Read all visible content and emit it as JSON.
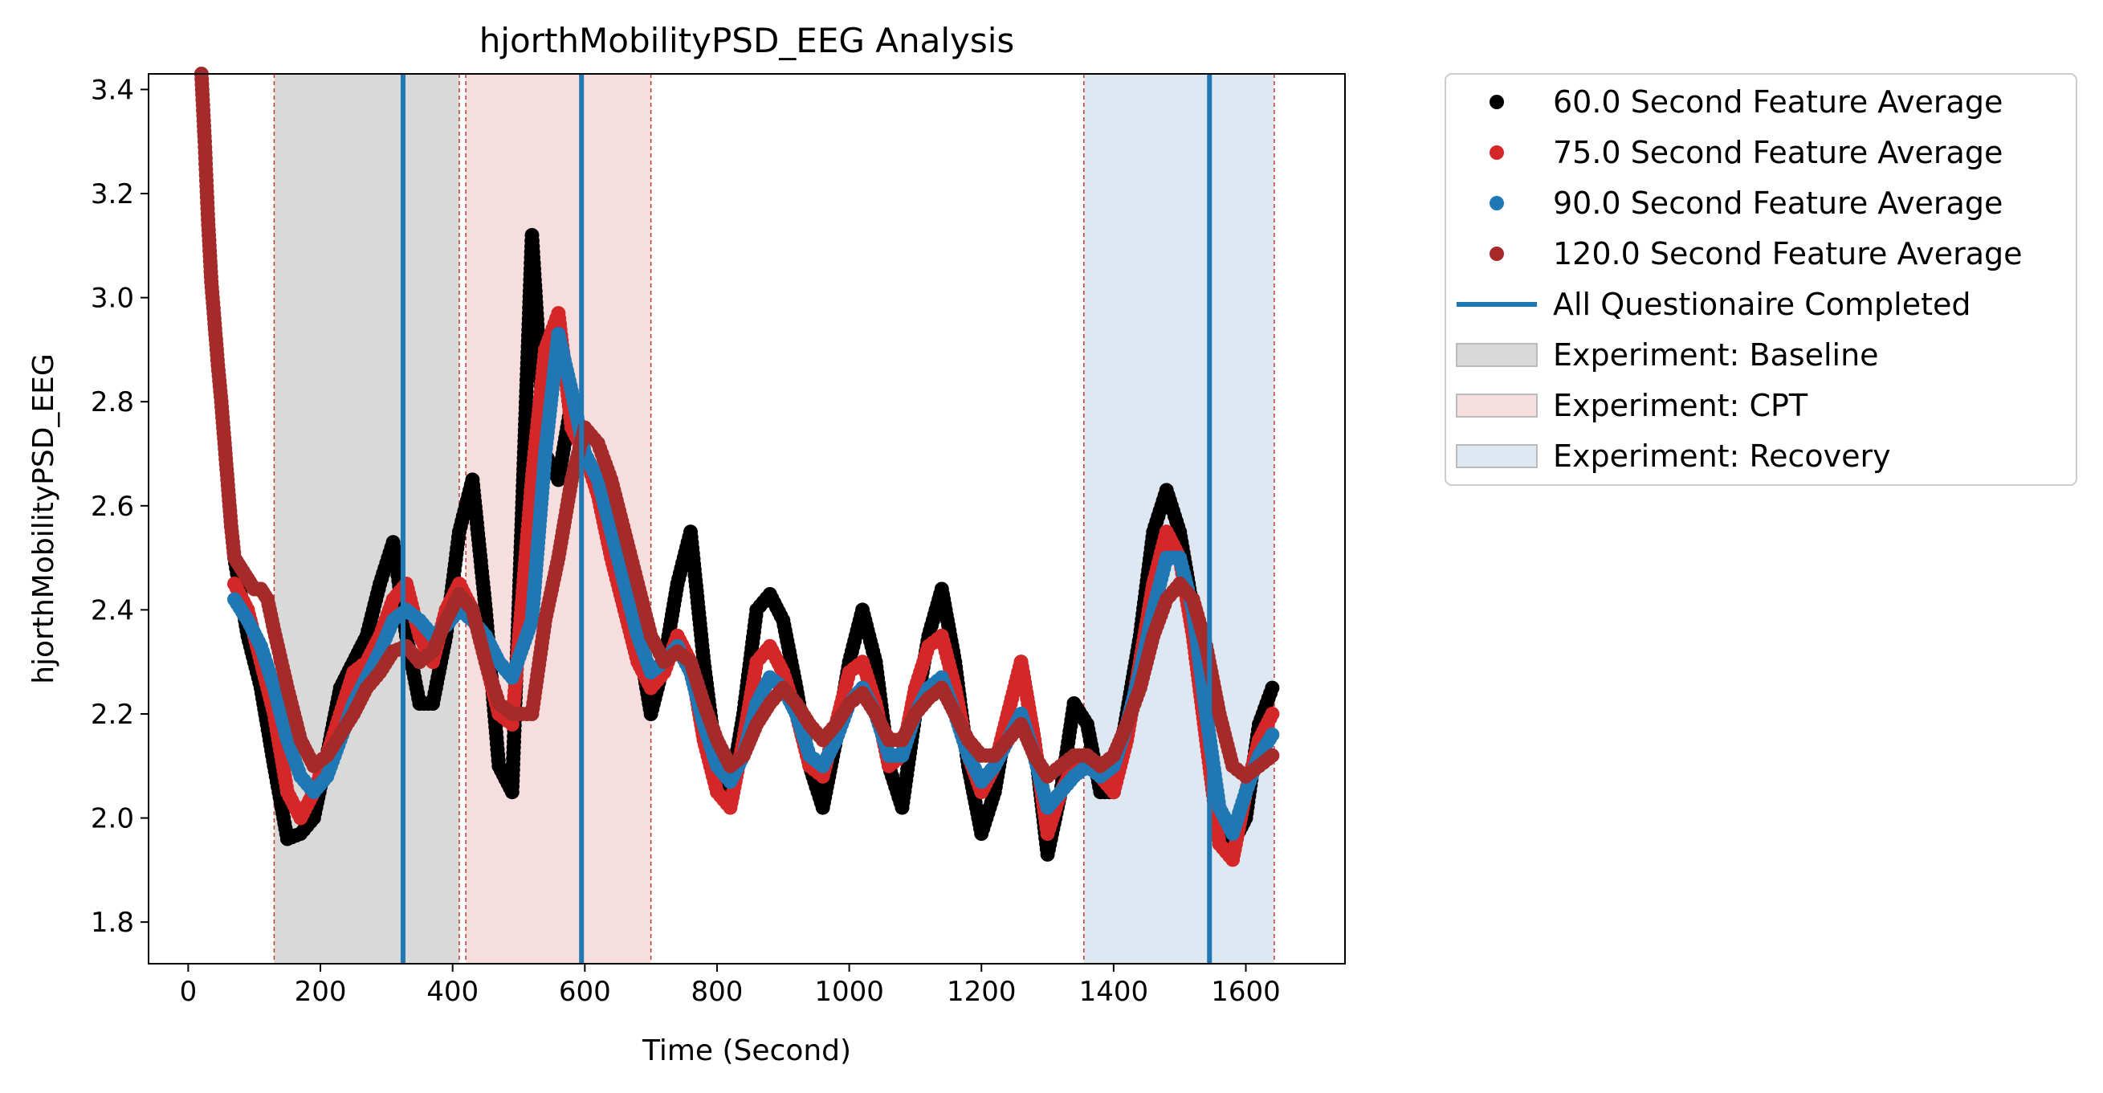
{
  "chart_data": {
    "type": "scatter",
    "title": "hjorthMobilityPSD_EEG Analysis",
    "xlabel": "Time (Second)",
    "ylabel": "hjorthMobilityPSD_EEG",
    "xlim": [
      -60,
      1750
    ],
    "ylim": [
      1.72,
      3.43
    ],
    "xticks": [
      0,
      200,
      400,
      600,
      800,
      1000,
      1200,
      1400,
      1600
    ],
    "yticks": [
      1.8,
      2.0,
      2.2,
      2.4,
      2.6,
      2.8,
      3.0,
      3.2,
      3.4
    ],
    "xtick_labels": [
      "0",
      "200",
      "400",
      "600",
      "800",
      "1000",
      "1200",
      "1400",
      "1600"
    ],
    "ytick_labels": [
      "1.8",
      "2.0",
      "2.2",
      "2.4",
      "2.6",
      "2.8",
      "3.0",
      "3.2",
      "3.4"
    ],
    "grid": false,
    "legend_position": "outside-right",
    "series": [
      {
        "name": "60.0 Second Feature Average",
        "color": "#000000",
        "x": [
          70,
          90,
          110,
          130,
          150,
          170,
          190,
          210,
          230,
          250,
          270,
          290,
          310,
          330,
          350,
          370,
          390,
          410,
          430,
          450,
          470,
          490,
          520,
          540,
          560,
          580,
          600,
          620,
          640,
          660,
          680,
          700,
          720,
          740,
          760,
          780,
          800,
          820,
          840,
          860,
          880,
          900,
          920,
          940,
          960,
          980,
          1000,
          1020,
          1040,
          1060,
          1080,
          1100,
          1120,
          1140,
          1160,
          1180,
          1200,
          1220,
          1240,
          1260,
          1280,
          1300,
          1320,
          1340,
          1360,
          1380,
          1400,
          1420,
          1440,
          1460,
          1480,
          1500,
          1520,
          1540,
          1560,
          1580,
          1600,
          1620,
          1640
        ],
        "y": [
          2.5,
          2.35,
          2.25,
          2.1,
          1.96,
          1.97,
          2.0,
          2.12,
          2.25,
          2.3,
          2.35,
          2.45,
          2.53,
          2.35,
          2.22,
          2.22,
          2.35,
          2.55,
          2.65,
          2.4,
          2.1,
          2.05,
          3.12,
          2.7,
          2.65,
          2.8,
          2.7,
          2.65,
          2.55,
          2.45,
          2.35,
          2.2,
          2.3,
          2.45,
          2.55,
          2.3,
          2.1,
          2.05,
          2.2,
          2.4,
          2.43,
          2.38,
          2.25,
          2.1,
          2.02,
          2.15,
          2.3,
          2.4,
          2.3,
          2.1,
          2.02,
          2.2,
          2.35,
          2.44,
          2.3,
          2.1,
          1.97,
          2.05,
          2.2,
          2.3,
          2.15,
          1.93,
          2.05,
          2.22,
          2.18,
          2.05,
          2.05,
          2.2,
          2.35,
          2.55,
          2.63,
          2.55,
          2.4,
          2.2,
          2.0,
          1.95,
          2.0,
          2.18,
          2.25
        ]
      },
      {
        "name": "75.0 Second Feature Average",
        "color": "#d62728",
        "x": [
          70,
          90,
          110,
          130,
          150,
          170,
          190,
          210,
          230,
          250,
          270,
          290,
          310,
          330,
          350,
          370,
          390,
          410,
          430,
          450,
          470,
          490,
          520,
          540,
          560,
          580,
          600,
          620,
          640,
          660,
          680,
          700,
          720,
          740,
          760,
          780,
          800,
          820,
          840,
          860,
          880,
          900,
          920,
          940,
          960,
          980,
          1000,
          1020,
          1040,
          1060,
          1080,
          1100,
          1120,
          1140,
          1160,
          1180,
          1200,
          1220,
          1240,
          1260,
          1280,
          1300,
          1320,
          1340,
          1360,
          1380,
          1400,
          1420,
          1440,
          1460,
          1480,
          1500,
          1520,
          1540,
          1560,
          1580,
          1600,
          1620,
          1640
        ],
        "y": [
          2.45,
          2.4,
          2.3,
          2.2,
          2.05,
          2.0,
          2.05,
          2.12,
          2.2,
          2.28,
          2.3,
          2.35,
          2.42,
          2.45,
          2.35,
          2.3,
          2.4,
          2.45,
          2.4,
          2.3,
          2.2,
          2.18,
          2.65,
          2.9,
          2.97,
          2.75,
          2.7,
          2.62,
          2.5,
          2.4,
          2.3,
          2.25,
          2.28,
          2.35,
          2.3,
          2.15,
          2.05,
          2.02,
          2.15,
          2.3,
          2.33,
          2.28,
          2.2,
          2.1,
          2.08,
          2.18,
          2.28,
          2.3,
          2.22,
          2.1,
          2.12,
          2.25,
          2.33,
          2.35,
          2.25,
          2.12,
          2.05,
          2.1,
          2.2,
          2.3,
          2.15,
          1.97,
          2.05,
          2.1,
          2.12,
          2.08,
          2.05,
          2.15,
          2.3,
          2.45,
          2.55,
          2.5,
          2.35,
          2.15,
          1.95,
          1.92,
          2.05,
          2.15,
          2.2
        ]
      },
      {
        "name": "90.0 Second Feature Average",
        "color": "#1f77b4",
        "x": [
          70,
          90,
          110,
          130,
          150,
          170,
          190,
          210,
          230,
          250,
          270,
          290,
          310,
          330,
          350,
          370,
          390,
          410,
          430,
          450,
          470,
          490,
          520,
          540,
          560,
          580,
          600,
          620,
          640,
          660,
          680,
          700,
          720,
          740,
          760,
          780,
          800,
          820,
          840,
          860,
          880,
          900,
          920,
          940,
          960,
          980,
          1000,
          1020,
          1040,
          1060,
          1080,
          1100,
          1120,
          1140,
          1160,
          1180,
          1200,
          1220,
          1240,
          1260,
          1280,
          1300,
          1320,
          1340,
          1360,
          1380,
          1400,
          1420,
          1440,
          1460,
          1480,
          1500,
          1520,
          1540,
          1560,
          1580,
          1600,
          1620,
          1640
        ],
        "y": [
          2.42,
          2.38,
          2.33,
          2.25,
          2.15,
          2.08,
          2.05,
          2.08,
          2.15,
          2.22,
          2.27,
          2.32,
          2.38,
          2.4,
          2.38,
          2.35,
          2.37,
          2.4,
          2.38,
          2.35,
          2.3,
          2.27,
          2.38,
          2.7,
          2.93,
          2.82,
          2.7,
          2.65,
          2.55,
          2.45,
          2.35,
          2.28,
          2.3,
          2.33,
          2.28,
          2.18,
          2.1,
          2.07,
          2.12,
          2.22,
          2.27,
          2.25,
          2.2,
          2.12,
          2.1,
          2.15,
          2.22,
          2.25,
          2.2,
          2.12,
          2.12,
          2.2,
          2.25,
          2.27,
          2.2,
          2.12,
          2.07,
          2.1,
          2.15,
          2.2,
          2.12,
          2.02,
          2.05,
          2.08,
          2.1,
          2.08,
          2.1,
          2.18,
          2.28,
          2.4,
          2.5,
          2.5,
          2.4,
          2.2,
          2.02,
          1.97,
          2.05,
          2.12,
          2.16
        ]
      },
      {
        "name": "120.0 Second Feature Average",
        "color": "#a52a2a",
        "x": [
          20,
          25,
          30,
          35,
          40,
          45,
          50,
          55,
          60,
          65,
          70,
          80,
          90,
          100,
          110,
          120,
          130,
          150,
          170,
          190,
          210,
          230,
          250,
          270,
          290,
          310,
          330,
          350,
          370,
          390,
          410,
          430,
          450,
          470,
          490,
          520,
          540,
          560,
          580,
          600,
          620,
          640,
          660,
          680,
          700,
          720,
          740,
          760,
          780,
          800,
          820,
          840,
          860,
          880,
          900,
          920,
          940,
          960,
          980,
          1000,
          1020,
          1040,
          1060,
          1080,
          1100,
          1120,
          1140,
          1160,
          1180,
          1200,
          1220,
          1240,
          1260,
          1280,
          1300,
          1320,
          1340,
          1360,
          1380,
          1400,
          1420,
          1440,
          1460,
          1480,
          1500,
          1520,
          1540,
          1560,
          1580,
          1600,
          1620,
          1640
        ],
        "y": [
          3.43,
          3.3,
          3.15,
          3.03,
          2.95,
          2.87,
          2.8,
          2.72,
          2.64,
          2.56,
          2.5,
          2.48,
          2.46,
          2.44,
          2.44,
          2.42,
          2.36,
          2.25,
          2.15,
          2.1,
          2.12,
          2.16,
          2.2,
          2.25,
          2.28,
          2.32,
          2.33,
          2.3,
          2.32,
          2.38,
          2.43,
          2.4,
          2.3,
          2.22,
          2.2,
          2.2,
          2.38,
          2.5,
          2.65,
          2.75,
          2.72,
          2.65,
          2.55,
          2.45,
          2.35,
          2.3,
          2.32,
          2.3,
          2.22,
          2.15,
          2.1,
          2.12,
          2.18,
          2.22,
          2.25,
          2.22,
          2.18,
          2.15,
          2.18,
          2.22,
          2.24,
          2.2,
          2.15,
          2.15,
          2.2,
          2.23,
          2.25,
          2.2,
          2.15,
          2.12,
          2.12,
          2.15,
          2.18,
          2.12,
          2.08,
          2.1,
          2.12,
          2.12,
          2.1,
          2.12,
          2.18,
          2.25,
          2.35,
          2.42,
          2.45,
          2.42,
          2.33,
          2.2,
          2.1,
          2.08,
          2.1,
          2.12
        ]
      }
    ],
    "vlines": {
      "name": "All Questionaire Completed",
      "color": "#1f77b4",
      "x": [
        325,
        595,
        1545
      ]
    },
    "spans": [
      {
        "name": "Experiment: Baseline",
        "color": "#808080",
        "start": 130,
        "end": 410
      },
      {
        "name": "Experiment: CPT",
        "color": "#f08080",
        "start": 420,
        "end": 700
      },
      {
        "name": "Experiment: Recovery",
        "color": "#a6c8e0",
        "start": 1355,
        "end": 1643
      }
    ],
    "legend": [
      {
        "label": "60.0 Second Feature Average",
        "kind": "dot",
        "color": "#000000"
      },
      {
        "label": "75.0 Second Feature Average",
        "kind": "dot",
        "color": "#d62728"
      },
      {
        "label": "90.0 Second Feature Average",
        "kind": "dot",
        "color": "#1f77b4"
      },
      {
        "label": "120.0 Second Feature Average",
        "kind": "dot",
        "color": "#a52a2a"
      },
      {
        "label": "All Questionaire Completed",
        "kind": "line",
        "color": "#1f77b4"
      },
      {
        "label": "Experiment: Baseline",
        "kind": "patch",
        "color": "#d9d9d9"
      },
      {
        "label": "Experiment: CPT",
        "kind": "patch",
        "color": "#f7dede"
      },
      {
        "label": "Experiment: Recovery",
        "kind": "patch",
        "color": "#dde8f3"
      }
    ]
  }
}
